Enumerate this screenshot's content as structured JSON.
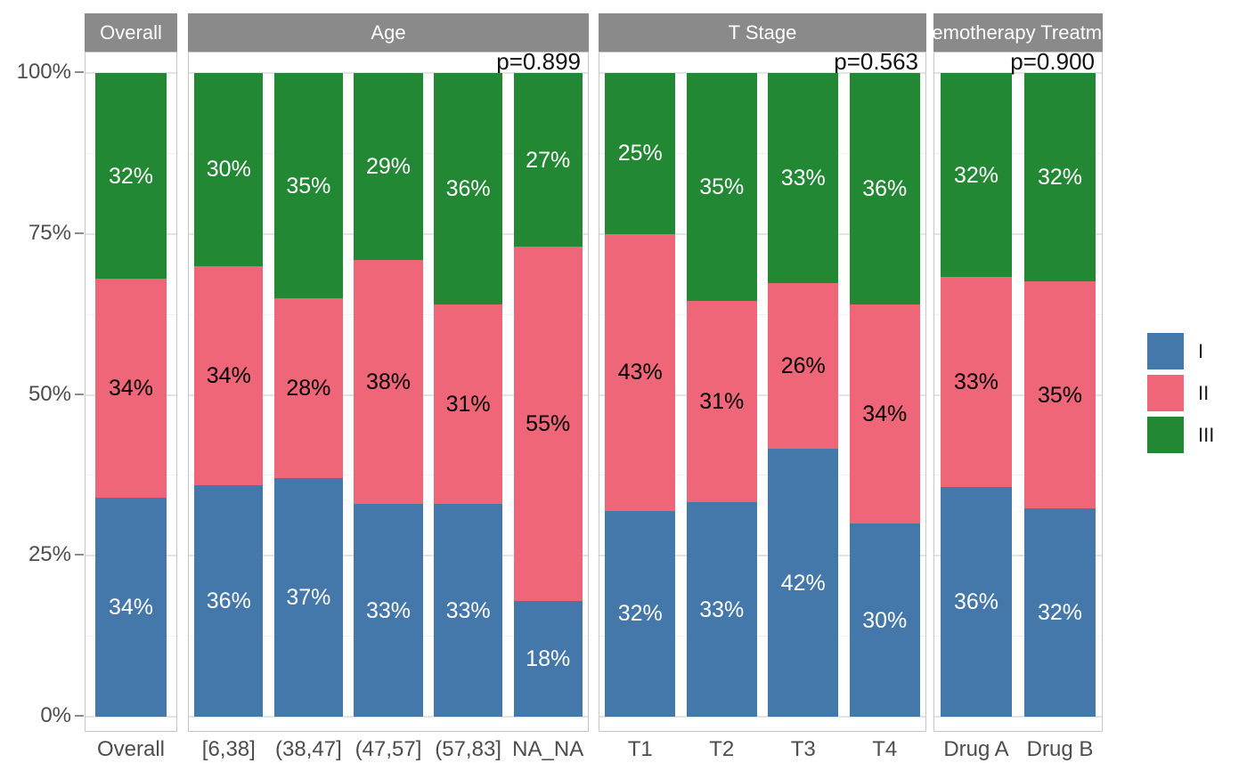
{
  "y_axis": {
    "tick_labels": [
      "100%",
      "75%",
      "50%",
      "25%",
      "0%"
    ],
    "tick_values": [
      100,
      75,
      50,
      25,
      0
    ]
  },
  "legend": {
    "items": [
      {
        "label": "I",
        "color": "#4477AA",
        "text_color_on_fill": "#ffffff"
      },
      {
        "label": "II",
        "color": "#EE6677",
        "text_color_on_fill": "#000000"
      },
      {
        "label": "III",
        "color": "#228833",
        "text_color_on_fill": "#ffffff"
      }
    ]
  },
  "style_colors": {
    "strip_background": "#8a8a8a",
    "strip_text": "#ffffff",
    "axis_text": "#4d4d4d",
    "p_value_text": "#111111",
    "panel_border": "#c6c6c6",
    "gridline_major": "#e4e4e4",
    "gridline_minor": "#f1f1f1"
  },
  "chart_data": {
    "type": "bar",
    "subtype": "stacked_percent",
    "stack_order_bottom_to_top": [
      "I",
      "II",
      "III"
    ],
    "ylabel": "",
    "ylim": [
      0,
      100
    ],
    "grid": "major+minor",
    "legend_position": "right",
    "value_suffix": "%",
    "facets": [
      {
        "title": "Overall",
        "p_value": null,
        "categories": [
          "Overall"
        ],
        "series": [
          {
            "name": "I",
            "values": [
              34
            ]
          },
          {
            "name": "II",
            "values": [
              34
            ]
          },
          {
            "name": "III",
            "values": [
              32
            ]
          }
        ]
      },
      {
        "title": "Age",
        "p_value": "p=0.899",
        "categories": [
          "[6,38]",
          "(38,47]",
          "(47,57]",
          "(57,83]",
          "NA_NA"
        ],
        "series": [
          {
            "name": "I",
            "values": [
              36,
              37,
              33,
              33,
              18
            ]
          },
          {
            "name": "II",
            "values": [
              34,
              28,
              38,
              31,
              55
            ]
          },
          {
            "name": "III",
            "values": [
              30,
              35,
              29,
              36,
              27
            ]
          }
        ]
      },
      {
        "title": "T Stage",
        "p_value": "p=0.563",
        "categories": [
          "T1",
          "T2",
          "T3",
          "T4"
        ],
        "series": [
          {
            "name": "I",
            "values": [
              32,
              33,
              42,
              30
            ]
          },
          {
            "name": "II",
            "values": [
              43,
              31,
              26,
              34
            ]
          },
          {
            "name": "III",
            "values": [
              25,
              35,
              33,
              36
            ]
          }
        ]
      },
      {
        "title": "Chemotherapy Treatment",
        "p_value": "p=0.900",
        "categories": [
          "Drug A",
          "Drug B"
        ],
        "series": [
          {
            "name": "I",
            "values": [
              36,
              32
            ]
          },
          {
            "name": "II",
            "values": [
              33,
              35
            ]
          },
          {
            "name": "III",
            "values": [
              32,
              32
            ]
          }
        ]
      }
    ]
  }
}
